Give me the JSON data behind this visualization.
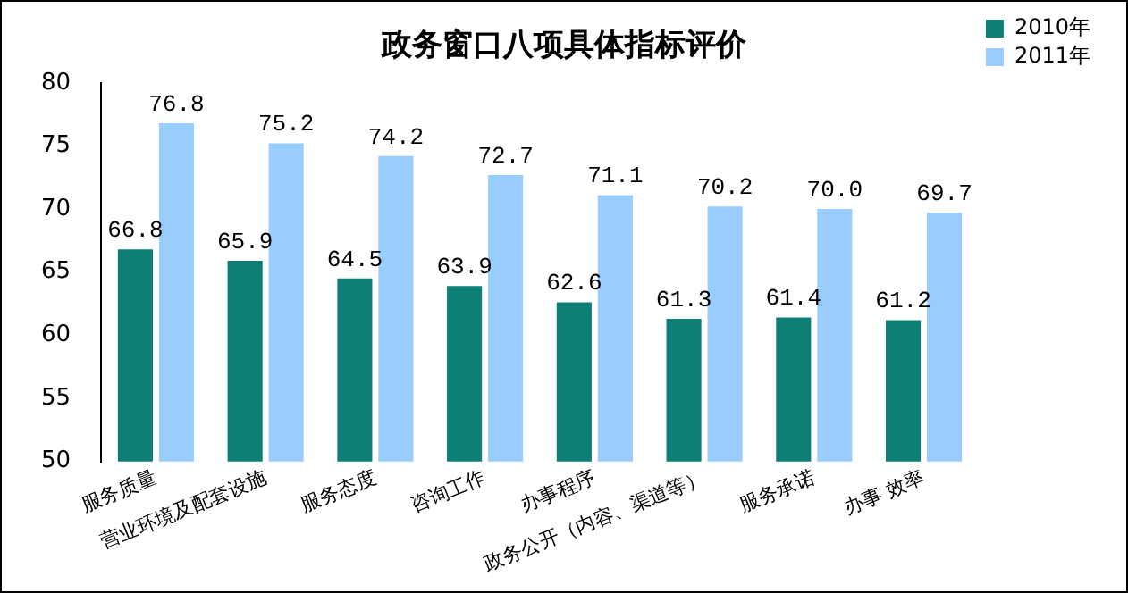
{
  "chart_data": {
    "type": "bar",
    "title": "政务窗口八项具体指标评价",
    "categories": [
      "服务质量",
      "营业环境及配套设施",
      "服务态度",
      "咨询工作",
      "办事程序",
      "政务公开（内容、渠道等）",
      "服务承诺",
      "办事 效率"
    ],
    "series": [
      {
        "name": "2010年",
        "color": "#0e7f74",
        "values": [
          66.8,
          65.9,
          64.5,
          63.9,
          62.6,
          61.3,
          61.4,
          61.2
        ],
        "value_labels": [
          "66.8",
          "65.9",
          "64.5",
          "63.9",
          "62.6",
          "61.3",
          "61.4",
          "61.2"
        ]
      },
      {
        "name": "2011年",
        "color": "#99ccff",
        "values": [
          76.8,
          75.2,
          74.2,
          72.7,
          71.1,
          70.2,
          70.0,
          69.7
        ],
        "value_labels": [
          "76.8",
          "75.2",
          "74.2",
          "72.7",
          "71.1",
          "70.2",
          "70.0",
          "69.7"
        ]
      }
    ],
    "ylim": [
      50,
      80
    ],
    "yticks": [
      50,
      55,
      60,
      65,
      70,
      75,
      80
    ],
    "grid": false,
    "legend": "top right"
  }
}
